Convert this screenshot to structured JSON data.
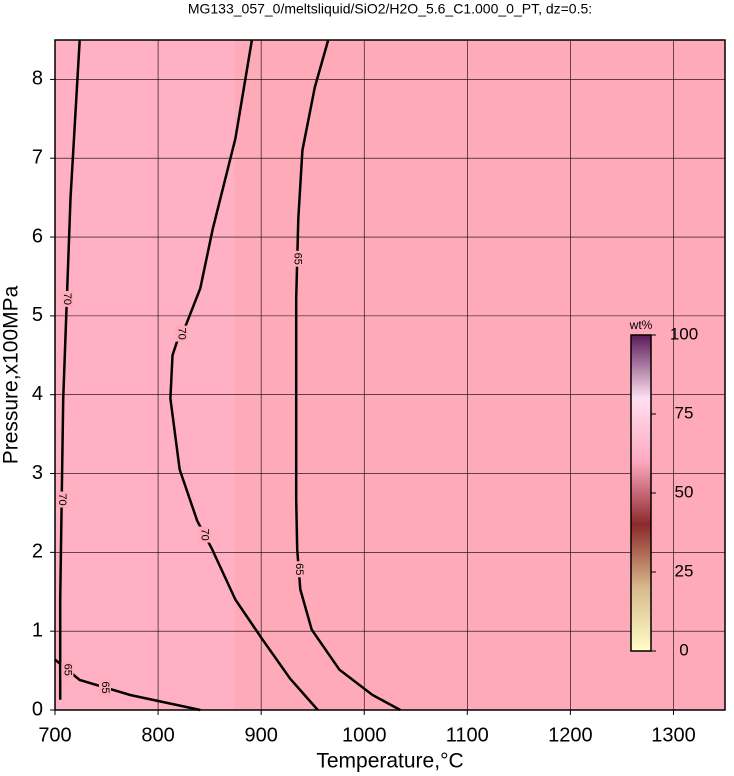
{
  "chart_data": {
    "type": "contour",
    "title": "MG133_057_0/meltsliquid/SiO2/H2O_5.6_C1.000_0_PT, dz=0.5:",
    "x_label": "Temperature,°C",
    "y_label": "Pressure,x100MPa",
    "xlim": [
      700,
      1350
    ],
    "ylim": [
      0,
      8.5
    ],
    "xticks": [
      700,
      800,
      900,
      1000,
      1100,
      1200,
      1300
    ],
    "yticks": [
      0,
      1,
      2,
      3,
      4,
      5,
      6,
      7,
      8
    ],
    "grid": true,
    "background": "#ffaab8",
    "contours": [
      {
        "level": 70,
        "x": [
          891,
          875,
          853,
          841,
          826,
          819,
          814,
          812,
          821,
          838,
          852,
          875,
          901,
          928,
          955
        ],
        "y": [
          8.5,
          7.25,
          6.1,
          5.35,
          4.85,
          4.7,
          4.5,
          3.95,
          3.05,
          2.4,
          2.05,
          1.4,
          0.9,
          0.4,
          0
        ]
      },
      {
        "level": 65,
        "x": [
          965,
          952,
          940,
          936,
          934,
          934,
          934,
          935,
          938,
          949,
          976,
          1008,
          1035
        ],
        "y": [
          8.5,
          7.9,
          7.1,
          6.23,
          5.22,
          3.94,
          2.67,
          2.04,
          1.53,
          1.02,
          0.51,
          0.19,
          0
        ]
      },
      {
        "level": 70,
        "x": [
          705,
          705,
          708,
          715,
          724
        ],
        "y": [
          0.13,
          1.4,
          3.94,
          6.49,
          8.5
        ]
      },
      {
        "level": 65,
        "x": [
          700,
          724,
          773,
          841
        ],
        "y": [
          0.64,
          0.38,
          0.19,
          0
        ]
      }
    ],
    "colorbar": {
      "label": "wt%",
      "lim": [
        0,
        100
      ],
      "ticks": [
        0,
        25,
        50,
        75,
        100
      ],
      "colors": [
        "#ffffc8",
        "#d9b98c",
        "#8c2a2a",
        "#ffa8c0",
        "#ffe0f0",
        "#5a1a5a"
      ]
    }
  }
}
